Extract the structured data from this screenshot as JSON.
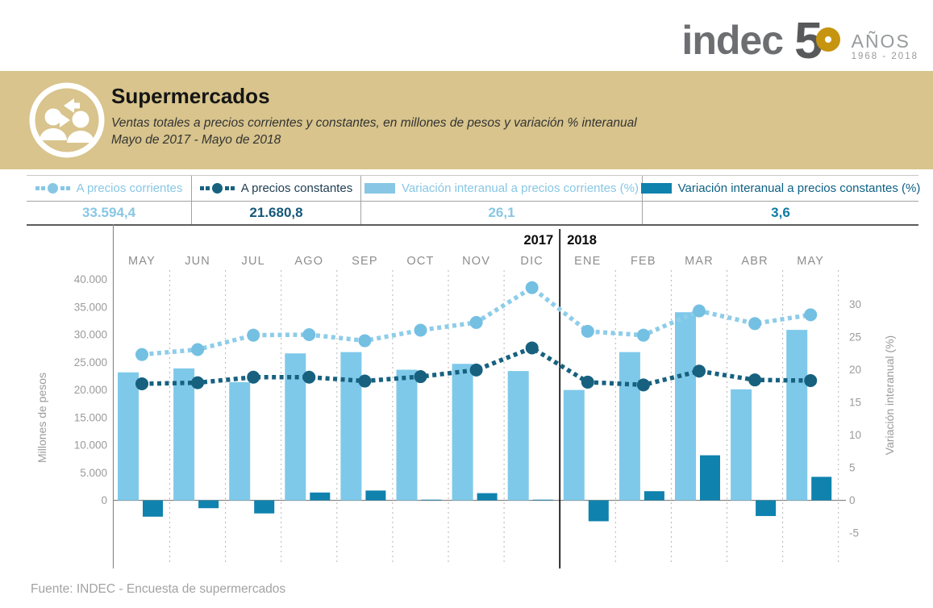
{
  "logo": {
    "brand": "indec",
    "anniversary_digit": "5",
    "anniversary_label": "AÑOS",
    "anniversary_years": "1968 - 2018"
  },
  "header": {
    "title": "Supermercados",
    "subtitle_line1": "Ventas totales a precios corrientes y constantes, en millones de pesos y variación % interanual",
    "subtitle_line2": "Mayo de 2017 - Mayo de 2018"
  },
  "summary": {
    "items": [
      {
        "label": "A precios corrientes",
        "value": "33.594,4"
      },
      {
        "label": "A precios constantes",
        "value": "21.680,8"
      },
      {
        "label": "Variación interanual a precios corrientes (%)",
        "value": "26,1"
      },
      {
        "label": "Variación interanual a precios constantes (%)",
        "value": "3,6"
      }
    ]
  },
  "colors": {
    "light_blue": "#87c7e5",
    "bar_light": "#7ec9ea",
    "line_light": "#8ecde9",
    "dot_light": "#74c0e3",
    "navy": "#17617f",
    "teal": "#0f82ae",
    "band_gold": "#d8c48c",
    "logo_gray": "#6d6e71",
    "logo_gold": "#c6940f",
    "axis_gray": "#9b9b9b",
    "month_gray": "#8d8d8d"
  },
  "chart_data": {
    "type": "bar+line combo",
    "months": [
      "MAY",
      "JUN",
      "JUL",
      "AGO",
      "SEP",
      "OCT",
      "NOV",
      "DIC",
      "ENE",
      "FEB",
      "MAR",
      "ABR",
      "MAY"
    ],
    "years": {
      "left": "2017",
      "right": "2018",
      "break_after_index": 7
    },
    "left_axis": {
      "label": "Millones de pesos",
      "tick_labels": [
        "40.000",
        "35.000",
        "30.000",
        "25.000",
        "20.000",
        "15.000",
        "10.000",
        "5.000",
        "0"
      ],
      "min": 0,
      "max": 40000
    },
    "right_axis": {
      "label": "Variación interanual (%)",
      "tick_values": [
        30,
        25,
        20,
        15,
        10,
        5,
        0,
        -5
      ]
    },
    "series": [
      {
        "name": "A precios corrientes",
        "type": "line",
        "axis": "left",
        "values": [
          26400,
          27300,
          29900,
          30000,
          28900,
          30800,
          32200,
          38500,
          30600,
          29900,
          34300,
          32000,
          33594
        ]
      },
      {
        "name": "A precios constantes",
        "type": "line",
        "axis": "left",
        "values": [
          21100,
          21300,
          22300,
          22300,
          21600,
          22400,
          23600,
          27600,
          21400,
          20900,
          23400,
          21800,
          21681
        ]
      },
      {
        "name": "Variación interanual a precios corrientes (%)",
        "type": "bar",
        "axis": "right",
        "values": [
          19.6,
          20.2,
          18.1,
          22.5,
          22.7,
          20.0,
          20.9,
          19.8,
          16.9,
          22.7,
          28.8,
          17.0,
          26.1
        ]
      },
      {
        "name": "Variación interanual a precios constantes (%)",
        "type": "bar",
        "axis": "right",
        "values": [
          -2.5,
          -1.2,
          -2.0,
          1.2,
          1.5,
          0.1,
          1.1,
          0.1,
          -3.2,
          1.4,
          6.9,
          -2.4,
          3.6
        ]
      }
    ],
    "grid": "vertical dashed between months",
    "legend_position": "top table"
  },
  "footer": {
    "source": "Fuente:  INDEC - Encuesta de supermercados"
  }
}
